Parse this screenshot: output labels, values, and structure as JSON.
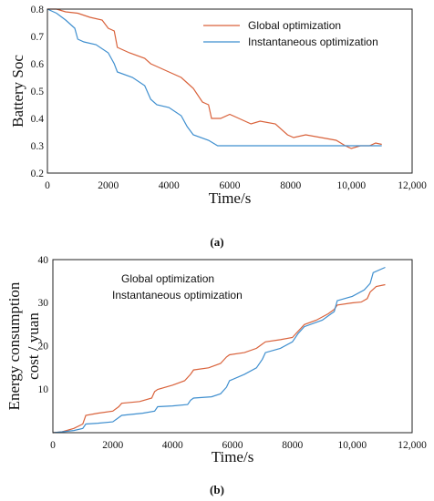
{
  "colors": {
    "global": "#d9623b",
    "instant": "#3f8fcf"
  },
  "chart_data": [
    {
      "type": "line",
      "panel_label": "(a)",
      "xlabel": "Time/s",
      "ylabel": "Battery Soc",
      "xlim": [
        0,
        12000
      ],
      "ylim": [
        0.2,
        0.8
      ],
      "xticks": [
        0,
        2000,
        4000,
        6000,
        8000,
        10000,
        12000
      ],
      "xtick_labels": [
        "0",
        "2000",
        "4000",
        "6000",
        "8000",
        "10,000",
        "12,000"
      ],
      "yticks": [
        0.2,
        0.3,
        0.4,
        0.5,
        0.6,
        0.7,
        0.8
      ],
      "ytick_labels": [
        "0.2",
        "0.3",
        "0.4",
        "0.5",
        "0.6",
        "0.7",
        "0.8"
      ],
      "legend": "top-right",
      "series": [
        {
          "name": "Global optimization",
          "color_key": "global",
          "x": [
            0,
            300,
            600,
            1000,
            1400,
            1800,
            2000,
            2200,
            2300,
            2700,
            3200,
            3400,
            3600,
            4000,
            4400,
            4600,
            4800,
            5100,
            5300,
            5400,
            5700,
            6000,
            6300,
            6700,
            7000,
            7500,
            7900,
            8100,
            8500,
            9000,
            9500,
            9800,
            10000,
            10300,
            10600,
            10800,
            11000
          ],
          "y": [
            0.8,
            0.8,
            0.79,
            0.785,
            0.77,
            0.76,
            0.73,
            0.72,
            0.66,
            0.64,
            0.62,
            0.6,
            0.59,
            0.57,
            0.55,
            0.53,
            0.51,
            0.46,
            0.45,
            0.4,
            0.4,
            0.415,
            0.4,
            0.38,
            0.39,
            0.38,
            0.34,
            0.33,
            0.34,
            0.33,
            0.32,
            0.3,
            0.29,
            0.3,
            0.3,
            0.31,
            0.305
          ]
        },
        {
          "name": "Instantaneous optimization",
          "color_key": "instant",
          "x": [
            0,
            300,
            600,
            900,
            1000,
            1200,
            1600,
            2000,
            2200,
            2300,
            2800,
            3200,
            3400,
            3600,
            4000,
            4400,
            4600,
            4800,
            5300,
            5600,
            6000,
            6500,
            7000,
            7500,
            8000,
            8500,
            9000,
            9500,
            10000,
            10500,
            11000
          ],
          "y": [
            0.8,
            0.785,
            0.76,
            0.73,
            0.69,
            0.68,
            0.67,
            0.64,
            0.6,
            0.57,
            0.55,
            0.52,
            0.47,
            0.45,
            0.44,
            0.41,
            0.37,
            0.34,
            0.32,
            0.3,
            0.3,
            0.3,
            0.3,
            0.3,
            0.3,
            0.3,
            0.3,
            0.3,
            0.3,
            0.3,
            0.3
          ]
        }
      ]
    },
    {
      "type": "line",
      "panel_label": "(b)",
      "xlabel": "Time/s",
      "ylabel_lines": [
        "Energy consumption",
        "cost / yuan"
      ],
      "xlim": [
        0,
        12000
      ],
      "ylim": [
        0,
        40
      ],
      "xticks": [
        0,
        2000,
        4000,
        6000,
        8000,
        10000,
        12000
      ],
      "xtick_labels": [
        "0",
        "2000",
        "4000",
        "6000",
        "8000",
        "10,000",
        "12,000"
      ],
      "yticks": [
        10,
        20,
        30,
        40
      ],
      "ytick_labels": [
        "10",
        "20",
        "30",
        "40"
      ],
      "legend": "top-left",
      "series": [
        {
          "name": "Global optimization",
          "color_key": "global",
          "x": [
            0,
            300,
            700,
            1000,
            1100,
            1500,
            2000,
            2200,
            2300,
            2900,
            3300,
            3400,
            3500,
            4000,
            4400,
            4600,
            4700,
            5200,
            5600,
            5800,
            5900,
            6400,
            6800,
            7000,
            7100,
            7600,
            8000,
            8200,
            8400,
            8800,
            9200,
            9400,
            9500,
            10000,
            10300,
            10500,
            10600,
            10800,
            11100
          ],
          "y": [
            0,
            0.2,
            1,
            2,
            4,
            4.5,
            5,
            6,
            6.8,
            7.2,
            8,
            9.5,
            10,
            11,
            12,
            13.5,
            14.5,
            15,
            16,
            17.5,
            18,
            18.5,
            19.5,
            20.5,
            21,
            21.5,
            22,
            23.5,
            25,
            26,
            27.5,
            28.5,
            29.5,
            30,
            30.2,
            31,
            32.5,
            33.8,
            34.2
          ]
        },
        {
          "name": "Instantaneous optimization",
          "color_key": "instant",
          "x": [
            0,
            300,
            700,
            1000,
            1100,
            1500,
            2000,
            2200,
            2300,
            3000,
            3400,
            3500,
            4000,
            4500,
            4600,
            4700,
            5300,
            5600,
            5800,
            5900,
            6400,
            6800,
            7000,
            7100,
            7600,
            8000,
            8200,
            8400,
            9000,
            9400,
            9500,
            10000,
            10400,
            10600,
            10700,
            11100
          ],
          "y": [
            0,
            0.2,
            0.5,
            1,
            2,
            2.2,
            2.5,
            3.5,
            4,
            4.5,
            5,
            6,
            6.2,
            6.5,
            7.5,
            8,
            8.3,
            9,
            10.5,
            12,
            13.5,
            15,
            17,
            18.5,
            19.5,
            21,
            23,
            24.5,
            26,
            28,
            30.5,
            31.5,
            33,
            34.5,
            37,
            38.2
          ]
        }
      ]
    }
  ]
}
